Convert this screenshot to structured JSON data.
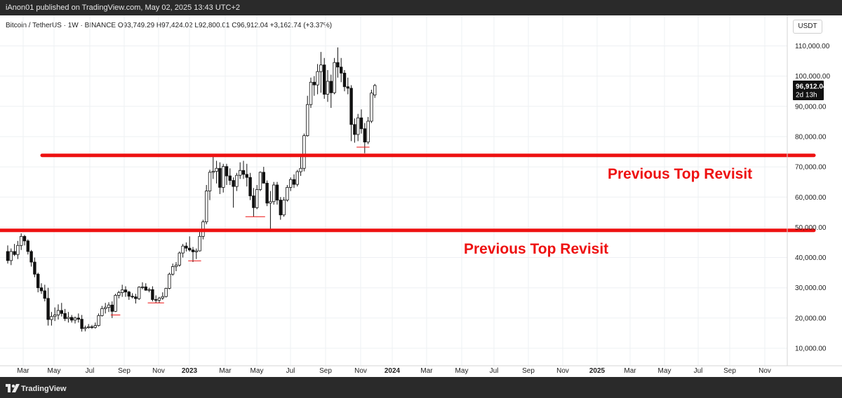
{
  "header": {
    "published_text": "iAnon01 published on TradingView.com, May 02, 2025 13:43 UTC+2"
  },
  "symbol": {
    "summary": "Bitcoin / TetherUS · 1W · BINANCE  O93,749.29  H97,424.02  L92,800.01  C96,912.04  +3,162.74 (+3.37%)"
  },
  "price_scale": {
    "currency": "USDT"
  },
  "last_price": {
    "price_label": "96,912.04",
    "countdown_label": "2d 13h"
  },
  "footer": {
    "brand": "TradingView"
  },
  "colors": {
    "candle": "#111111",
    "annotation": "#ee1111",
    "grid": "#eef0f3"
  },
  "chart_data": {
    "type": "candlestick",
    "grid": false,
    "y_ticks": [
      10000,
      20000,
      30000,
      40000,
      50000,
      60000,
      70000,
      80000,
      90000,
      100000,
      110000
    ],
    "y_tick_labels": [
      "10,000.00",
      "20,000.00",
      "30,000.00",
      "40,000.00",
      "50,000.00",
      "60,000.00",
      "70,000.00",
      "80,000.00",
      "90,000.00",
      "100,000.00",
      "110,000.00"
    ],
    "x_tick_labels": [
      "Mar",
      "May",
      "Jul",
      "Sep",
      "Nov",
      "2023",
      "Mar",
      "May",
      "Jul",
      "Sep",
      "Nov",
      "2024",
      "Mar",
      "May",
      "Jul",
      "Sep",
      "Nov",
      "2025",
      "Mar",
      "May",
      "Jul",
      "Sep",
      "Nov"
    ],
    "candles": [
      [
        42000,
        44000,
        38000,
        39000
      ],
      [
        39000,
        43000,
        37500,
        42000
      ],
      [
        42000,
        44500,
        40500,
        41000
      ],
      [
        41000,
        45500,
        39500,
        44000
      ],
      [
        44000,
        48000,
        42500,
        47000
      ],
      [
        47000,
        47500,
        44000,
        45500
      ],
      [
        45500,
        46000,
        41000,
        42000
      ],
      [
        42000,
        42500,
        37000,
        38500
      ],
      [
        38500,
        40000,
        33500,
        34500
      ],
      [
        34500,
        35000,
        28500,
        30000
      ],
      [
        30000,
        31500,
        28000,
        29000
      ],
      [
        29000,
        31000,
        25500,
        26500
      ],
      [
        26500,
        30000,
        17500,
        19500
      ],
      [
        19500,
        22000,
        17500,
        20500
      ],
      [
        20500,
        23500,
        19000,
        21000
      ],
      [
        21000,
        24500,
        19500,
        22500
      ],
      [
        22500,
        25000,
        20500,
        21500
      ],
      [
        21500,
        23000,
        19000,
        19800
      ],
      [
        19800,
        22000,
        18500,
        20200
      ],
      [
        20200,
        21000,
        18500,
        19300
      ],
      [
        19300,
        20500,
        18200,
        20000
      ],
      [
        20000,
        21500,
        18500,
        19600
      ],
      [
        19600,
        21000,
        15500,
        16500
      ],
      [
        16500,
        17500,
        15600,
        16800
      ],
      [
        16800,
        18000,
        16500,
        17100
      ],
      [
        17100,
        17700,
        16400,
        16900
      ],
      [
        16900,
        18500,
        16500,
        17500
      ],
      [
        17500,
        21500,
        17200,
        20800
      ],
      [
        20800,
        24000,
        20500,
        23100
      ],
      [
        23100,
        25000,
        21500,
        23500
      ],
      [
        23500,
        25200,
        22000,
        24300
      ],
      [
        24300,
        25500,
        20000,
        22200
      ],
      [
        22200,
        28000,
        22000,
        27500
      ],
      [
        27500,
        29000,
        26500,
        28400
      ],
      [
        28400,
        31000,
        27000,
        29300
      ],
      [
        29300,
        30500,
        27000,
        28600
      ],
      [
        28600,
        29000,
        26000,
        27200
      ],
      [
        27200,
        28200,
        26500,
        27000
      ],
      [
        27000,
        28000,
        24800,
        26400
      ],
      [
        26400,
        30500,
        26000,
        30200
      ],
      [
        30200,
        31800,
        29500,
        30300
      ],
      [
        30300,
        31500,
        29000,
        29200
      ],
      [
        29200,
        30000,
        28500,
        29400
      ],
      [
        29400,
        30500,
        25500,
        26100
      ],
      [
        26100,
        27500,
        25000,
        25900
      ],
      [
        25900,
        27000,
        25000,
        26600
      ],
      [
        26600,
        28500,
        26000,
        27100
      ],
      [
        27100,
        30000,
        26800,
        29800
      ],
      [
        29800,
        35000,
        29500,
        34500
      ],
      [
        34500,
        38000,
        34000,
        37000
      ],
      [
        37000,
        38500,
        35500,
        37500
      ],
      [
        37500,
        42000,
        37000,
        41500
      ],
      [
        41500,
        44500,
        40000,
        43800
      ],
      [
        43800,
        45000,
        42000,
        43100
      ],
      [
        43100,
        47000,
        42000,
        42500
      ],
      [
        42500,
        43500,
        38500,
        41900
      ],
      [
        41900,
        43000,
        39500,
        42200
      ],
      [
        42200,
        49000,
        42000,
        47000
      ],
      [
        47000,
        52500,
        46000,
        51800
      ],
      [
        51800,
        64000,
        51000,
        62000
      ],
      [
        62000,
        69000,
        59000,
        68200
      ],
      [
        68200,
        73800,
        66000,
        68500
      ],
      [
        68500,
        72000,
        64500,
        69500
      ],
      [
        69500,
        71500,
        61000,
        63200
      ],
      [
        63200,
        71000,
        61500,
        70100
      ],
      [
        70100,
        71000,
        64000,
        67000
      ],
      [
        67000,
        69500,
        64000,
        65500
      ],
      [
        65500,
        66500,
        56500,
        63500
      ],
      [
        63500,
        68000,
        62000,
        67200
      ],
      [
        67200,
        71500,
        66000,
        68800
      ],
      [
        68800,
        72000,
        66000,
        67500
      ],
      [
        67500,
        71000,
        63500,
        66500
      ],
      [
        66500,
        68000,
        59000,
        60400
      ],
      [
        60400,
        63000,
        53500,
        56500
      ],
      [
        56500,
        64000,
        56000,
        62500
      ],
      [
        62500,
        68500,
        62000,
        68200
      ],
      [
        68200,
        70000,
        64500,
        64600
      ],
      [
        64600,
        65500,
        57000,
        58000
      ],
      [
        58000,
        62000,
        49500,
        58500
      ],
      [
        58500,
        65000,
        57500,
        64000
      ],
      [
        64000,
        65000,
        57500,
        59000
      ],
      [
        59000,
        60000,
        52500,
        54100
      ],
      [
        54100,
        60000,
        53500,
        59000
      ],
      [
        59000,
        64000,
        58500,
        63200
      ],
      [
        63200,
        66500,
        62000,
        65800
      ],
      [
        65800,
        67500,
        63000,
        64200
      ],
      [
        64200,
        69000,
        63500,
        68400
      ],
      [
        68400,
        73500,
        67000,
        69500
      ],
      [
        69500,
        81000,
        68500,
        80300
      ],
      [
        80300,
        93500,
        80000,
        90600
      ],
      [
        90600,
        99500,
        89500,
        98000
      ],
      [
        98000,
        100000,
        93500,
        97100
      ],
      [
        97100,
        104000,
        94000,
        101500
      ],
      [
        101500,
        108000,
        94500,
        103700
      ],
      [
        103700,
        106000,
        92500,
        94000
      ],
      [
        94000,
        102000,
        91500,
        98300
      ],
      [
        98300,
        100500,
        89500,
        94500
      ],
      [
        94500,
        106000,
        94000,
        104500
      ],
      [
        104500,
        109500,
        99500,
        103000
      ],
      [
        103000,
        106000,
        98000,
        101000
      ],
      [
        101000,
        102000,
        95000,
        96500
      ],
      [
        96500,
        99500,
        94000,
        96000
      ],
      [
        96000,
        97000,
        78500,
        84000
      ],
      [
        84000,
        86000,
        78000,
        80700
      ],
      [
        80700,
        87500,
        78500,
        86200
      ],
      [
        86200,
        89000,
        81000,
        82600
      ],
      [
        82600,
        84500,
        74500,
        78200
      ],
      [
        78200,
        86500,
        77500,
        85100
      ],
      [
        85100,
        95500,
        84500,
        94400
      ],
      [
        93749.29,
        97424.02,
        92800.01,
        96912.04
      ]
    ],
    "horizontal_levels": [
      73800,
      49000
    ],
    "support_markers": [
      {
        "from_index": 31,
        "to_index": 33,
        "value": 21000
      },
      {
        "from_index": 42,
        "to_index": 46,
        "value": 25000
      },
      {
        "from_index": 54,
        "to_index": 57,
        "value": 38900
      },
      {
        "from_index": 71,
        "to_index": 76,
        "value": 53500
      },
      {
        "from_index": 104,
        "to_index": 107,
        "value": 76500
      }
    ],
    "annotations": [
      {
        "text": "Previous Top Revisit",
        "near_level": 73800
      },
      {
        "text": "Previous Top Revisit",
        "near_level": 49000
      }
    ],
    "last_price": 96912.04
  }
}
